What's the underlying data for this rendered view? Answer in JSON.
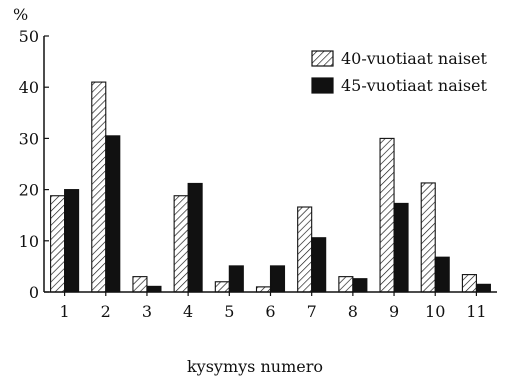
{
  "chart_data": {
    "type": "bar",
    "categories": [
      "1",
      "2",
      "3",
      "4",
      "5",
      "6",
      "7",
      "8",
      "9",
      "10",
      "11"
    ],
    "series": [
      {
        "name": "40-vuotiaat naiset",
        "pattern": "hatched",
        "values": [
          18.8,
          41.0,
          3.0,
          18.8,
          2.0,
          1.0,
          16.6,
          3.0,
          30.0,
          21.3,
          3.4
        ]
      },
      {
        "name": "45-vuotiaat naiset",
        "pattern": "solid",
        "values": [
          20.0,
          30.5,
          1.1,
          21.2,
          5.1,
          5.1,
          10.6,
          2.6,
          17.3,
          6.8,
          1.5
        ]
      }
    ],
    "title": "",
    "ylabel": "%",
    "xlabel": "kysymys numero",
    "ylim": [
      0,
      50
    ],
    "yticks": [
      "0",
      "10",
      "20",
      "30",
      "40",
      "50"
    ],
    "grid": false,
    "legend_position": "top-right",
    "colors": {
      "ink": "#111111",
      "background": "#ffffff"
    }
  }
}
